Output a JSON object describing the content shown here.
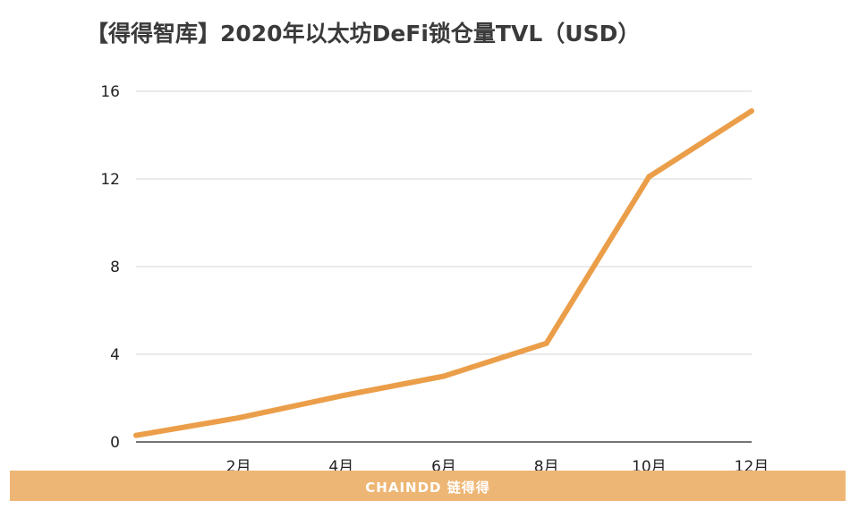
{
  "title": "【得得智库】2020年以太坊DeFi锁仓量TVL（USD）",
  "brand": "CHAINDD 链得得",
  "colors": {
    "line": "#eb9e49",
    "grid": "#d4d4d4",
    "band": "#eeb675"
  },
  "chart_data": {
    "type": "line",
    "title": "【得得智库】2020年以太坊DeFi锁仓量TVL（USD）",
    "xlabel": "",
    "ylabel": "",
    "x": [
      1,
      2,
      3,
      4,
      5,
      6,
      7,
      8,
      9,
      10,
      11,
      12
    ],
    "x_tick_labels": [
      "2月",
      "4月",
      "6月",
      "8月",
      "10月",
      "12月"
    ],
    "x_tick_positions": [
      2,
      4,
      6,
      8,
      10,
      12
    ],
    "series": [
      {
        "values": [
          0.3,
          1.1,
          2.1,
          3.0,
          4.5,
          12.1,
          15.1
        ],
        "x": [
          0,
          2,
          4,
          6,
          8,
          10,
          12
        ]
      }
    ],
    "ylim": [
      0,
      16
    ],
    "xlim": [
      0,
      12
    ],
    "y_ticks": [
      0,
      4,
      8,
      12,
      16
    ],
    "grid": "horizontal"
  }
}
